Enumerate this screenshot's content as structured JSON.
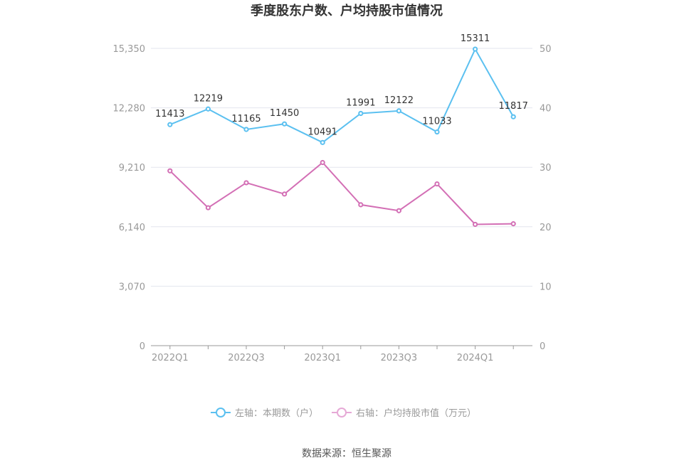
{
  "chart_data": {
    "type": "line",
    "title": "季度股东户数、户均持股市值情况",
    "categories": [
      "2022Q1",
      "2022Q2",
      "2022Q3",
      "2022Q4",
      "2023Q1",
      "2023Q2",
      "2023Q3",
      "2023Q4",
      "2024Q1",
      "2024Q2"
    ],
    "x_tick_labels": [
      "2022Q1",
      "2022Q3",
      "2023Q1",
      "2023Q3",
      "2024Q1"
    ],
    "y_left": {
      "min": 0,
      "max": 15350,
      "ticks": [
        "0",
        "3,070",
        "6,140",
        "9,210",
        "12,280",
        "15,350"
      ]
    },
    "y_right": {
      "min": 0,
      "max": 50,
      "ticks": [
        "0",
        "10",
        "20",
        "30",
        "40",
        "50"
      ]
    },
    "series": [
      {
        "name": "左轴：本期数（户）",
        "axis": "left",
        "color": "#5bc0f0",
        "values": [
          11413,
          12219,
          11165,
          11450,
          10491,
          11991,
          12122,
          11033,
          15311,
          11817
        ],
        "data_labels": [
          "11413",
          "12219",
          "11165",
          "11450",
          "10491",
          "11991",
          "12122",
          "11033",
          "15311",
          "11817"
        ]
      },
      {
        "name": "右轴：户均持股市值（万元）",
        "axis": "right",
        "color": "#d36fb5",
        "values": [
          29.4,
          23.2,
          27.4,
          25.5,
          30.8,
          23.7,
          22.7,
          27.2,
          20.4,
          20.5
        ]
      }
    ],
    "grid": true,
    "legend_position": "bottom"
  },
  "source": "数据来源：恒生聚源"
}
